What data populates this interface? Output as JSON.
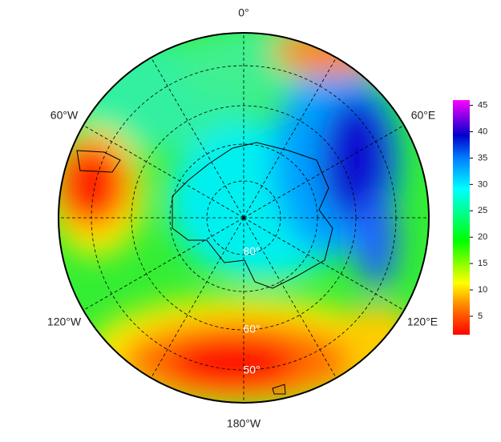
{
  "map": {
    "longitude_labels": [
      "0°",
      "60°E",
      "120°E",
      "180°W",
      "120°W",
      "60°W"
    ],
    "latitude_labels": [
      "80°",
      "60°",
      "50°"
    ]
  },
  "colorbar": {
    "lim": [
      1.5,
      46
    ],
    "ticks": [
      5,
      10,
      15,
      20,
      25,
      30,
      35,
      40,
      45
    ]
  }
}
